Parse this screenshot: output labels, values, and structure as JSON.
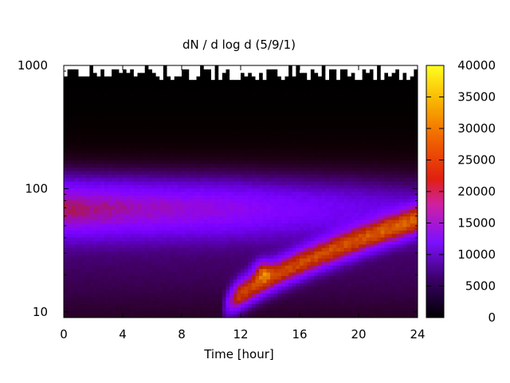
{
  "chart_data": {
    "type": "heatmap",
    "title": "dN / d log d (5/9/1)",
    "xlabel": "Time [hour]",
    "ylabel": "",
    "xlim": [
      0,
      24
    ],
    "ylim": [
      9,
      1000
    ],
    "y_scale": "log",
    "x_ticks": [
      0,
      4,
      8,
      12,
      16,
      20,
      24
    ],
    "y_ticks": [
      10,
      100,
      1000
    ],
    "colorbar": {
      "palette": "black-purple-red-orange-yellow",
      "range": [
        0,
        40000
      ],
      "ticks": [
        0,
        5000,
        10000,
        15000,
        20000,
        25000,
        30000,
        35000,
        40000
      ]
    },
    "features": [
      {
        "label": "persistent mode",
        "time_range": [
          0,
          24
        ],
        "diameter_center": 70,
        "max_value": 17000
      },
      {
        "label": "growth band",
        "time_range": [
          11,
          24
        ],
        "diameter_start": 10,
        "diameter_end": 55,
        "max_value": 30000
      },
      {
        "label": "peak",
        "time": 13.8,
        "diameter": 22,
        "value": 33000
      }
    ],
    "grid": false,
    "legend": "none"
  }
}
